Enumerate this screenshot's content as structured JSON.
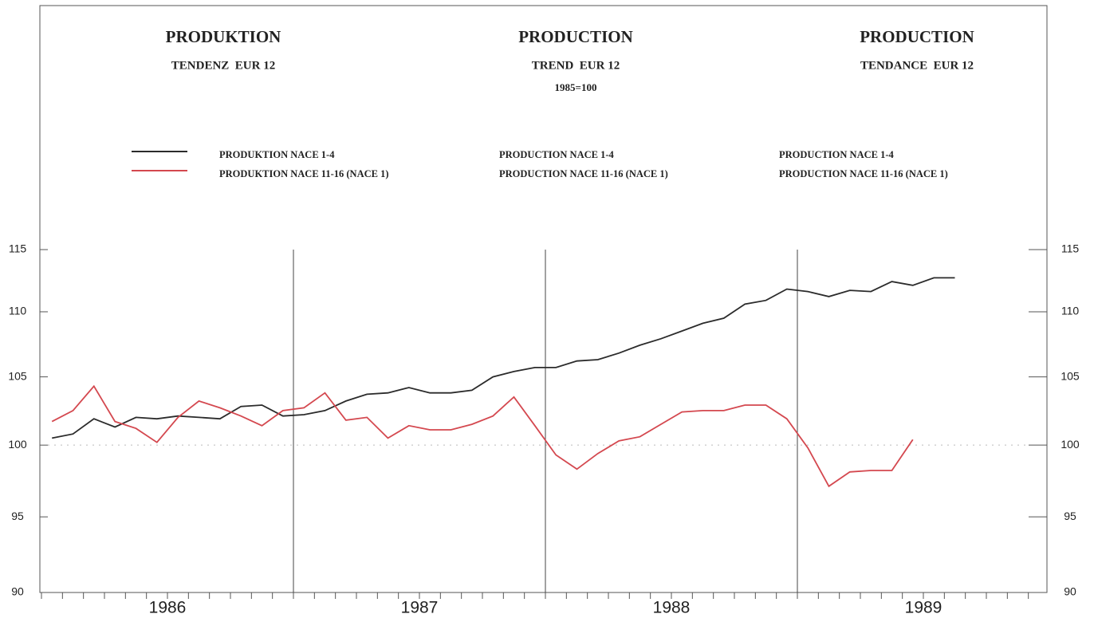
{
  "chart_data": {
    "type": "line",
    "titles": [
      {
        "title": "PRODUKTION",
        "subtitle": "TENDENZ  EUR 12"
      },
      {
        "title": "PRODUCTION",
        "subtitle": "TREND  EUR 12",
        "note": "1985=100"
      },
      {
        "title": "PRODUCTION",
        "subtitle": "TENDANCE  EUR 12"
      }
    ],
    "categories": [
      null,
      null,
      null,
      null,
      null,
      null,
      null,
      null,
      null,
      null,
      null,
      null,
      null,
      null,
      null,
      null,
      null,
      null,
      null,
      null,
      null,
      null,
      null,
      null,
      null,
      null,
      null,
      null,
      null,
      null,
      null,
      null,
      null,
      null,
      null,
      null,
      null,
      null,
      null,
      null,
      null,
      null,
      null,
      null,
      null,
      null,
      null,
      null
    ],
    "x_group_labels": [
      "1986",
      "1987",
      "1988",
      "1989"
    ],
    "series": [
      {
        "name": "PRODUKTION NACE 1-4",
        "name_en": "PRODUCTION NACE 1-4",
        "name_fr": "PRODUCTION NACE 1-4",
        "color": "#2b2b2b",
        "values": [
          100.5,
          100.8,
          101.9,
          101.3,
          102.0,
          101.9,
          102.1,
          102.0,
          101.9,
          102.8,
          102.9,
          102.1,
          102.2,
          102.5,
          103.2,
          103.7,
          103.8,
          104.2,
          103.8,
          103.8,
          104.0,
          105.0,
          105.4,
          105.7,
          105.7,
          106.2,
          106.3,
          106.8,
          107.4,
          107.9,
          108.5,
          109.1,
          109.5,
          110.6,
          110.9,
          111.8,
          111.6,
          111.2,
          111.7,
          111.6,
          112.4,
          112.1,
          112.7,
          112.7,
          null,
          null,
          null,
          null
        ]
      },
      {
        "name": "PRODUKTION NACE 11-16 (NACE 1)",
        "name_en": "PRODUCTION NACE 11-16 (NACE 1)",
        "name_fr": "PRODUCTION NACE 11-16 (NACE 1)",
        "color": "#d4484f",
        "values": [
          101.7,
          102.5,
          104.3,
          101.7,
          101.2,
          100.2,
          102.0,
          103.2,
          102.7,
          102.1,
          101.4,
          102.5,
          102.7,
          103.8,
          101.8,
          102.0,
          100.5,
          101.4,
          101.1,
          101.1,
          101.5,
          102.1,
          103.5,
          101.4,
          99.3,
          98.3,
          99.4,
          100.3,
          100.6,
          101.5,
          102.4,
          102.5,
          102.5,
          102.9,
          102.9,
          101.9,
          99.8,
          97.1,
          98.1,
          98.2,
          98.2,
          100.4,
          null,
          null,
          null,
          null,
          null,
          null
        ]
      }
    ],
    "ylim": [
      90,
      115
    ],
    "yticks": [
      90,
      95,
      100,
      105,
      110,
      115
    ],
    "log_scale": true,
    "reference_line": 100,
    "right_axis": true
  }
}
